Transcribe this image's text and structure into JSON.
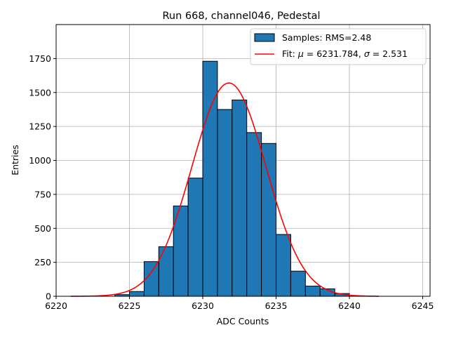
{
  "chart_data": {
    "type": "bar",
    "title": "Run 668, channel046, Pedestal",
    "xlabel": "ADC Counts",
    "ylabel": "Entries",
    "xlim": [
      6220,
      6245.5
    ],
    "ylim": [
      0,
      2000
    ],
    "xticks": [
      6220,
      6225,
      6230,
      6235,
      6240,
      6245
    ],
    "yticks": [
      0,
      250,
      500,
      750,
      1000,
      1250,
      1500,
      1750
    ],
    "grid": true,
    "legend_position": "top-right",
    "colors": {
      "bars": "#1f77b4",
      "bar_edge": "#000000",
      "fit": "#ff0000",
      "grid": "#b0b0b0"
    },
    "histogram": {
      "name": "Samples: RMS=2.48",
      "bin_width": 1,
      "bin_left_edges": [
        6224,
        6225,
        6226,
        6227,
        6228,
        6229,
        6230,
        6231,
        6232,
        6233,
        6234,
        6235,
        6236,
        6237,
        6238,
        6239
      ],
      "counts": [
        12,
        35,
        255,
        365,
        665,
        870,
        1730,
        1375,
        1445,
        1205,
        1125,
        455,
        185,
        75,
        55,
        20
      ]
    },
    "fit": {
      "label_prefix": "Fit: ",
      "mu_symbol": "μ",
      "mu_text": " = 6231.784, ",
      "sigma_symbol": "σ",
      "sigma_text": " = 2.531",
      "mu": 6231.784,
      "sigma": 2.531,
      "amplitude": 1570,
      "x_range": [
        6221,
        6242
      ]
    }
  }
}
